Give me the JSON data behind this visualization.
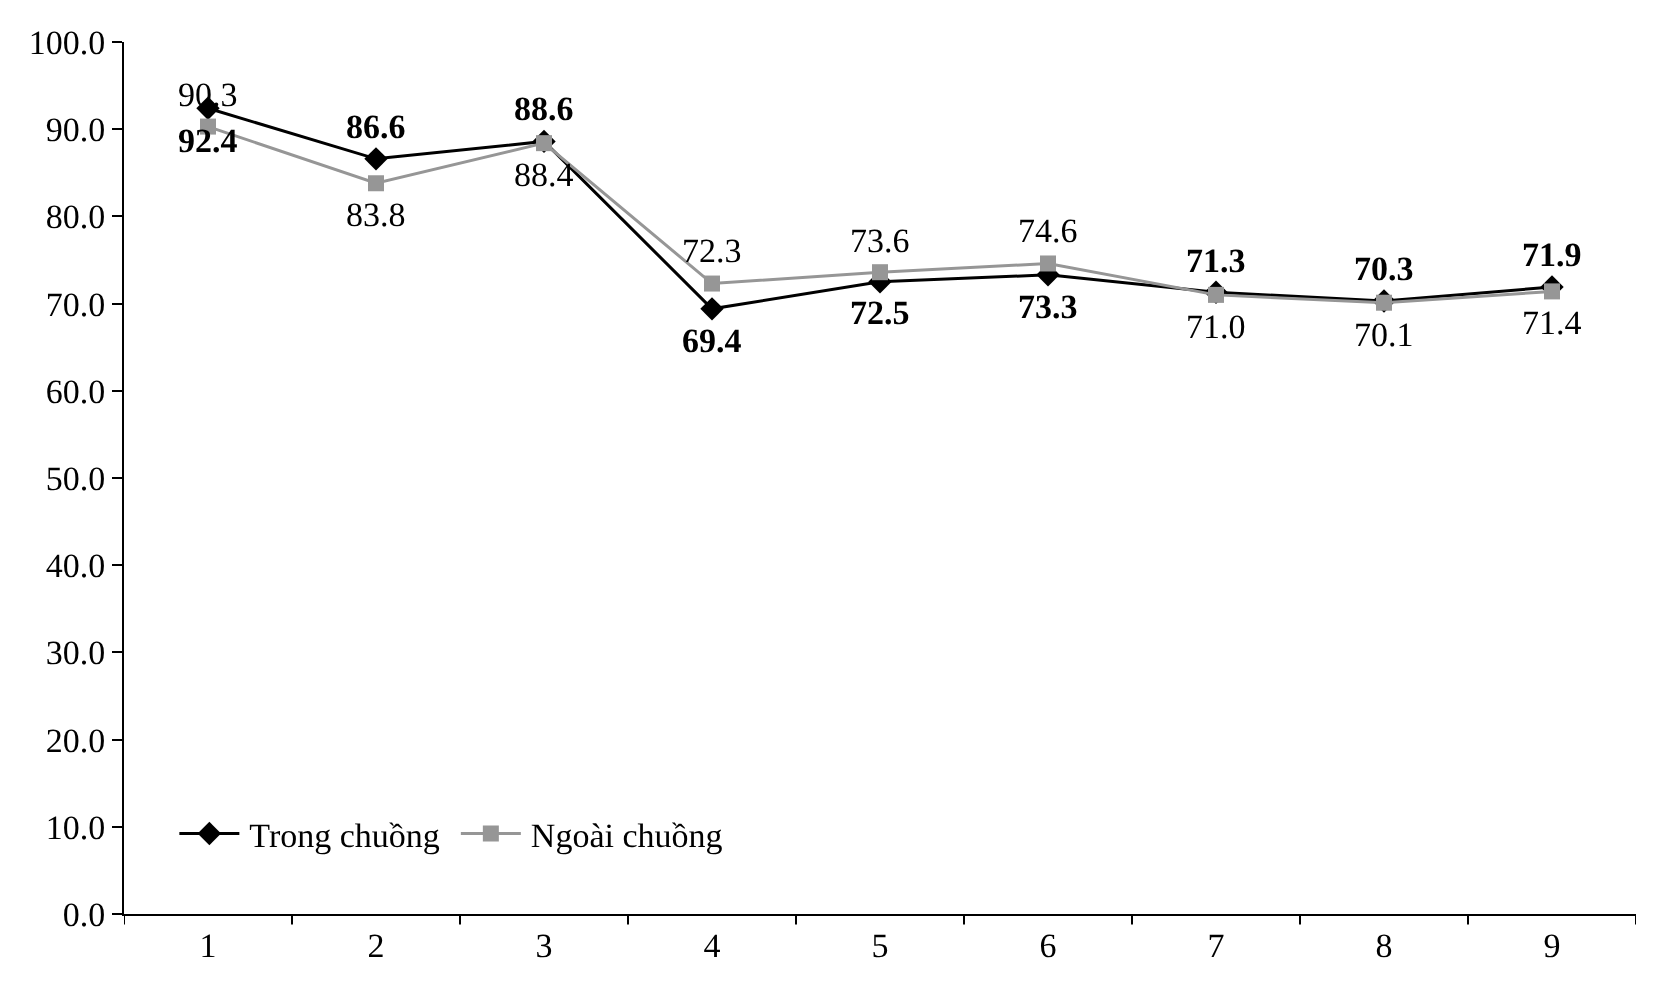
{
  "chart_data": {
    "type": "line",
    "categories": [
      "1",
      "2",
      "3",
      "4",
      "5",
      "6",
      "7",
      "8",
      "9"
    ],
    "series": [
      {
        "name": "Trong chuồng",
        "color": "#000000",
        "marker": "diamond",
        "values": [
          92.4,
          86.6,
          88.6,
          69.4,
          72.5,
          73.3,
          71.3,
          70.3,
          71.9
        ],
        "value_labels": [
          "92.4",
          "86.6",
          "88.6",
          "69.4",
          "72.5",
          "73.3",
          "71.3",
          "70.3",
          "71.9"
        ]
      },
      {
        "name": "Ngoài chuồng",
        "color": "#969696",
        "marker": "square",
        "values": [
          90.3,
          83.8,
          88.4,
          72.3,
          73.6,
          74.6,
          71.0,
          70.1,
          71.4
        ],
        "value_labels": [
          "90.3",
          "83.8",
          "88.4",
          "72.3",
          "73.6",
          "74.6",
          "71.0",
          "70.1",
          "71.4"
        ]
      }
    ],
    "ylim": [
      0,
      100
    ],
    "yticks": [
      {
        "value": 0,
        "label": "0.0"
      },
      {
        "value": 10,
        "label": "10.0"
      },
      {
        "value": 20,
        "label": "20.0"
      },
      {
        "value": 30,
        "label": "30.0"
      },
      {
        "value": 40,
        "label": "40.0"
      },
      {
        "value": 50,
        "label": "50.0"
      },
      {
        "value": 60,
        "label": "60.0"
      },
      {
        "value": 70,
        "label": "70.0"
      },
      {
        "value": 80,
        "label": "80.0"
      },
      {
        "value": 90,
        "label": "90.0"
      },
      {
        "value": 100,
        "label": "100.0"
      }
    ],
    "legend": "bottom left",
    "line_style": "solid"
  }
}
